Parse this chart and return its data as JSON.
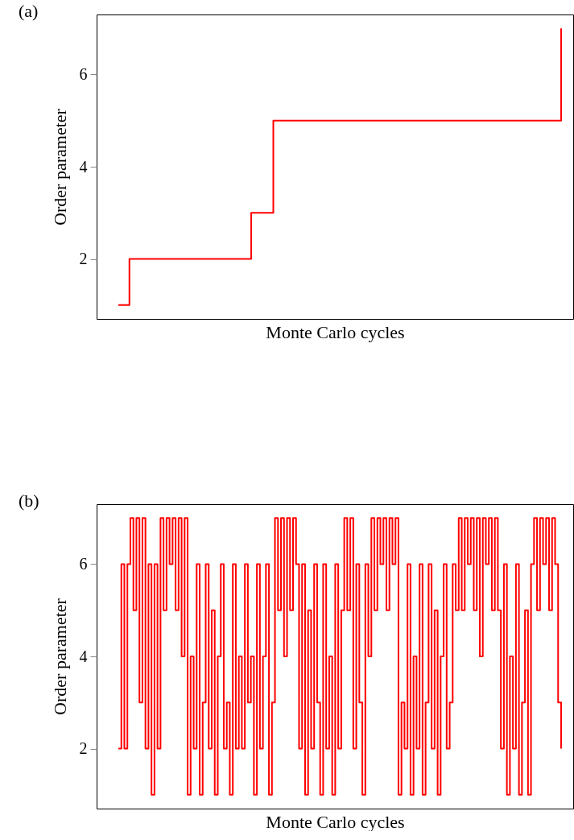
{
  "chart_data": [
    {
      "type": "step",
      "title": "(a)",
      "xlabel": "Monte Carlo cycles",
      "ylabel": "Order parameter",
      "categories": [
        null,
        null,
        null,
        null,
        null,
        null,
        null,
        null,
        null,
        null,
        null,
        null,
        null,
        null,
        null,
        null,
        null,
        null,
        null,
        null,
        null,
        null,
        null,
        null,
        null,
        null,
        null,
        null,
        null,
        null,
        null,
        null,
        null,
        null,
        null,
        null,
        null,
        null,
        null,
        null,
        null
      ],
      "series": [
        {
          "color": "#ff0000",
          "values": [
            1,
            2,
            2,
            2,
            2,
            2,
            2,
            2,
            2,
            2,
            2,
            2,
            3,
            3,
            5,
            5,
            5,
            5,
            5,
            5,
            5,
            5,
            5,
            5,
            5,
            5,
            5,
            5,
            5,
            5,
            5,
            5,
            5,
            5,
            5,
            5,
            5,
            5,
            5,
            5,
            7
          ]
        }
      ],
      "ylim": [
        0.7,
        7.3
      ],
      "yticks": [
        2,
        4,
        6
      ],
      "grid": false,
      "tick_labels": "y"
    },
    {
      "type": "step",
      "title": "(b)",
      "xlabel": "Monte Carlo cycles",
      "ylabel": "Order parameter",
      "categories": [
        null,
        null,
        null,
        null,
        null,
        null,
        null,
        null,
        null,
        null,
        null,
        null,
        null,
        null,
        null,
        null,
        null,
        null,
        null,
        null,
        null,
        null,
        null,
        null,
        null,
        null,
        null,
        null,
        null,
        null,
        null,
        null,
        null,
        null,
        null,
        null,
        null,
        null,
        null,
        null,
        null,
        null,
        null,
        null,
        null,
        null,
        null,
        null,
        null,
        null,
        null,
        null,
        null,
        null,
        null,
        null,
        null,
        null,
        null,
        null,
        null,
        null,
        null,
        null,
        null,
        null,
        null,
        null,
        null,
        null,
        null,
        null,
        null,
        null,
        null,
        null,
        null,
        null,
        null,
        null,
        null,
        null,
        null,
        null,
        null,
        null,
        null,
        null,
        null,
        null,
        null,
        null,
        null,
        null,
        null,
        null,
        null,
        null,
        null,
        null,
        null,
        null,
        null,
        null,
        null,
        null,
        null,
        null,
        null,
        null,
        null,
        null,
        null,
        null,
        null,
        null,
        null,
        null,
        null,
        null,
        null,
        null,
        null,
        null,
        null,
        null,
        null,
        null,
        null,
        null,
        null,
        null,
        null,
        null,
        null,
        null,
        null,
        null,
        null,
        null,
        null,
        null,
        null,
        null,
        null,
        null,
        null,
        null
      ],
      "series": [
        {
          "color": "#ff0000",
          "values": [
            2,
            6,
            2,
            6,
            7,
            5,
            7,
            3,
            7,
            2,
            6,
            1,
            6,
            2,
            7,
            5,
            7,
            6,
            7,
            5,
            7,
            4,
            7,
            1,
            4,
            2,
            6,
            1,
            3,
            6,
            2,
            5,
            1,
            4,
            6,
            2,
            3,
            1,
            6,
            2,
            4,
            2,
            6,
            3,
            4,
            1,
            6,
            2,
            4,
            6,
            1,
            3,
            7,
            5,
            7,
            4,
            7,
            5,
            7,
            6,
            2,
            6,
            1,
            5,
            2,
            6,
            3,
            1,
            6,
            2,
            4,
            1,
            6,
            2,
            5,
            7,
            5,
            7,
            2,
            6,
            3,
            1,
            6,
            4,
            7,
            5,
            7,
            6,
            7,
            5,
            7,
            6,
            7,
            1,
            3,
            2,
            6,
            1,
            4,
            2,
            6,
            1,
            3,
            6,
            2,
            5,
            1,
            4,
            6,
            2,
            3,
            6,
            5,
            7,
            5,
            7,
            6,
            7,
            5,
            7,
            4,
            7,
            6,
            7,
            5,
            7,
            5,
            2,
            6,
            1,
            4,
            2,
            6,
            1,
            3,
            5,
            1,
            6,
            7,
            5,
            7,
            6,
            7,
            5,
            7,
            6,
            3,
            2
          ]
        }
      ],
      "ylim": [
        0.7,
        7.3
      ],
      "yticks": [
        2,
        4,
        6
      ],
      "grid": false,
      "tick_labels": "y"
    }
  ]
}
